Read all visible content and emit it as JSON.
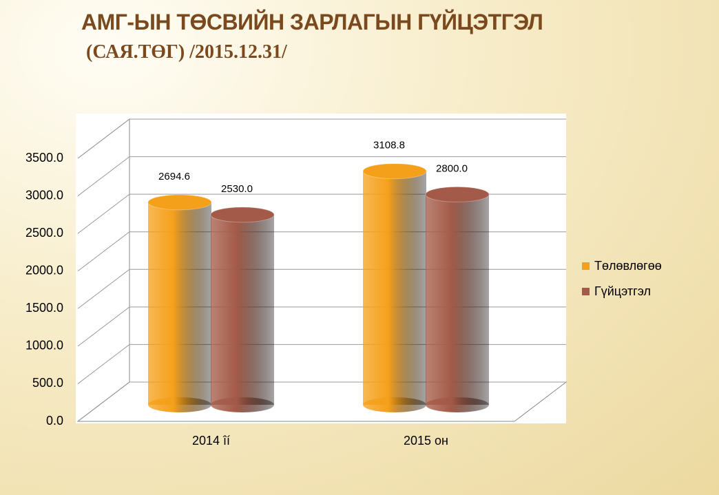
{
  "chart_data": {
    "type": "bar",
    "title": "АМГ-ЫН ТӨСВИЙН ЗАРЛАГЫН ГҮЙЦЭТГЭЛ",
    "subtitle": "(САЯ.ТӨГ) /2015.12.31/",
    "categories": [
      "2014 îí",
      "2015 он"
    ],
    "series": [
      {
        "name": "Төлөвлөгөө",
        "color": "#f5a01a",
        "values": [
          2694.6,
          3108.8
        ],
        "value_labels": [
          "2694.6",
          "3108.8"
        ]
      },
      {
        "name": "Гүйцэтгэл",
        "color": "#a45a48",
        "values": [
          2530,
          2800
        ],
        "value_labels": [
          "2530.0",
          "2800.0"
        ]
      }
    ],
    "ylim": [
      0,
      3500
    ],
    "yticks": [
      {
        "value": 0,
        "label": "0.0"
      },
      {
        "value": 500,
        "label": "500.0"
      },
      {
        "value": 1000,
        "label": "1000.0"
      },
      {
        "value": 1500,
        "label": "1500.0"
      },
      {
        "value": 2000,
        "label": "2000.0"
      },
      {
        "value": 2500,
        "label": "2500.0"
      },
      {
        "value": 3000,
        "label": "3000.0"
      },
      {
        "value": 3500,
        "label": "3500.0"
      }
    ],
    "grid": true,
    "legend": "right"
  }
}
